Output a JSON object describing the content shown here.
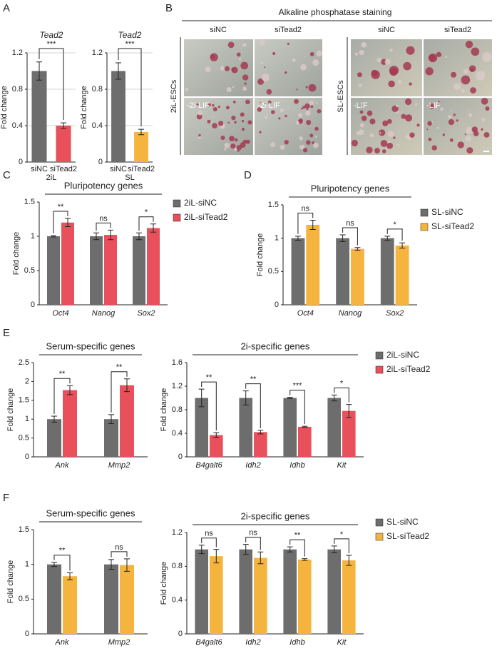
{
  "figure": {
    "panels": [
      "A",
      "B",
      "C",
      "D",
      "E",
      "F"
    ],
    "staining": {
      "title": "Alkaline phosphatase staining",
      "columns": [
        "siNC",
        "siTead2",
        "siNC",
        "siTead2"
      ],
      "rows": [
        "2iL-ESCs",
        "SL-ESCs"
      ],
      "conditions": [
        "-2i-LIF",
        "-2i-LIF",
        "-LIF",
        "-LIF"
      ]
    }
  },
  "chart_data": [
    {
      "type": "bar",
      "title": "Tead2",
      "ylabel": "Fold change",
      "xlabel": "2iL",
      "categories": [
        "siNC",
        "siTead2"
      ],
      "values": [
        1.0,
        0.4
      ],
      "errors": [
        0.1,
        0.03
      ],
      "colors": [
        "#6d6d6d",
        "#e8505b"
      ],
      "significance": "***",
      "ylim": [
        0,
        1.2
      ],
      "yticks": [
        0,
        0.4,
        0.8,
        1.2
      ],
      "grid": true
    },
    {
      "type": "bar",
      "title": "Tead2",
      "ylabel": "Fold change",
      "xlabel": "SL",
      "categories": [
        "siNC",
        "siTead2"
      ],
      "values": [
        1.0,
        0.33
      ],
      "errors": [
        0.09,
        0.03
      ],
      "colors": [
        "#6d6d6d",
        "#f5b43e"
      ],
      "significance": "***",
      "ylim": [
        0,
        1.2
      ],
      "yticks": [
        0,
        0.4,
        0.8,
        1.2
      ],
      "grid": true
    },
    {
      "type": "grouped-bar",
      "title": "Pluripotency genes",
      "ylabel": "Fold change",
      "categories": [
        "Oct4",
        "Nanog",
        "Sox2"
      ],
      "series": [
        {
          "name": "2iL-siNC",
          "color": "#6d6d6d",
          "values": [
            1.0,
            1.0,
            1.0
          ],
          "errors": [
            0.01,
            0.05,
            0.05
          ]
        },
        {
          "name": "2iL-siTead2",
          "color": "#e8505b",
          "values": [
            1.2,
            1.02,
            1.12
          ],
          "errors": [
            0.06,
            0.07,
            0.06
          ]
        }
      ],
      "significance": [
        "**",
        "ns",
        "*"
      ],
      "ylim": [
        0,
        1.5
      ],
      "yticks": [
        0,
        0.5,
        1,
        1.5
      ],
      "legend": "right"
    },
    {
      "type": "grouped-bar",
      "title": "Pluripotency genes",
      "ylabel": "Fold change",
      "categories": [
        "Oct4",
        "Nanog",
        "Sox2"
      ],
      "series": [
        {
          "name": "SL-siNC",
          "color": "#6d6d6d",
          "values": [
            1.0,
            1.0,
            1.0
          ],
          "errors": [
            0.03,
            0.05,
            0.03
          ]
        },
        {
          "name": "SL-siTead2",
          "color": "#f5b43e",
          "values": [
            1.2,
            0.84,
            0.89
          ],
          "errors": [
            0.07,
            0.02,
            0.04
          ]
        }
      ],
      "significance": [
        "ns",
        "ns",
        "*"
      ],
      "ylim": [
        0,
        1.5
      ],
      "yticks": [
        0,
        0.5,
        1,
        1.5
      ],
      "legend": "right"
    },
    {
      "type": "grouped-bar",
      "title": "Serum-specific genes",
      "ylabel": "Fold change",
      "categories": [
        "Ank",
        "Mmp2"
      ],
      "series": [
        {
          "color": "#6d6d6d",
          "values": [
            1.0,
            1.0
          ],
          "errors": [
            0.08,
            0.12
          ]
        },
        {
          "color": "#e8505b",
          "values": [
            1.77,
            1.9
          ],
          "errors": [
            0.12,
            0.17
          ]
        }
      ],
      "significance": [
        "**",
        "**"
      ],
      "ylim": [
        0,
        2.5
      ],
      "yticks": [
        0,
        0.5,
        1,
        1.5,
        2,
        2.5
      ]
    },
    {
      "type": "grouped-bar",
      "title": "2i-specific genes",
      "ylabel": "Fold change",
      "categories": [
        "B4galt6",
        "Idh2",
        "Idhb",
        "Kit"
      ],
      "series": [
        {
          "name": "2iL-siNC",
          "color": "#6d6d6d",
          "values": [
            1.0,
            1.0,
            1.0,
            1.0
          ],
          "errors": [
            0.15,
            0.12,
            0.01,
            0.05
          ]
        },
        {
          "name": "2iL-siTead2",
          "color": "#e8505b",
          "values": [
            0.37,
            0.42,
            0.51,
            0.78
          ],
          "errors": [
            0.04,
            0.03,
            0.01,
            0.11
          ]
        }
      ],
      "significance": [
        "**",
        "**",
        "***",
        "*"
      ],
      "ylim": [
        0,
        1.6
      ],
      "yticks": [
        0,
        0.4,
        0.8,
        1.2,
        1.6
      ],
      "legend": "right"
    },
    {
      "type": "grouped-bar",
      "title": "Serum-specific genes",
      "ylabel": "Fold change",
      "categories": [
        "Ank",
        "Mmp2"
      ],
      "series": [
        {
          "color": "#6d6d6d",
          "values": [
            1.0,
            1.0
          ],
          "errors": [
            0.03,
            0.07
          ]
        },
        {
          "color": "#f5b43e",
          "values": [
            0.83,
            0.99
          ],
          "errors": [
            0.05,
            0.09
          ]
        }
      ],
      "significance": [
        "**",
        "ns"
      ],
      "ylim": [
        0,
        1.5
      ],
      "yticks": [
        0,
        0.5,
        1,
        1.5
      ]
    },
    {
      "type": "grouped-bar",
      "title": "2i-specific genes",
      "ylabel": "Fold change",
      "categories": [
        "B4galt6",
        "Idh2",
        "Idhb",
        "Kit"
      ],
      "series": [
        {
          "name": "SL-siNC",
          "color": "#6d6d6d",
          "values": [
            1.0,
            1.0,
            1.0,
            1.0
          ],
          "errors": [
            0.05,
            0.06,
            0.03,
            0.04
          ]
        },
        {
          "name": "SL-siTead2",
          "color": "#f5b43e",
          "values": [
            0.92,
            0.9,
            0.88,
            0.87
          ],
          "errors": [
            0.08,
            0.07,
            0.01,
            0.06
          ]
        }
      ],
      "significance": [
        "ns",
        "ns",
        "**",
        "*"
      ],
      "ylim": [
        0,
        1.2
      ],
      "yticks": [
        0,
        0.4,
        0.8,
        1.2
      ],
      "legend": "right"
    }
  ]
}
